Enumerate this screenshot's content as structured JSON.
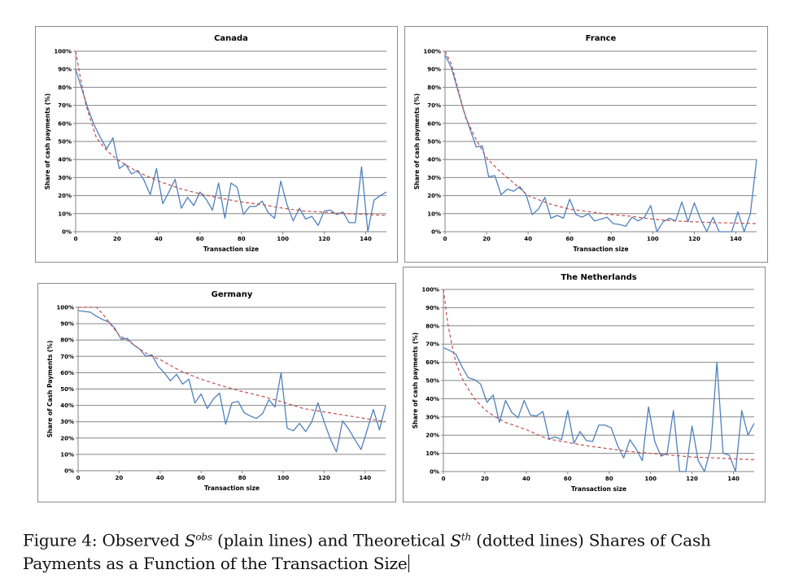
{
  "figure": {
    "caption_prefix": "Figure 4:",
    "caption_part1": " Observed ",
    "caption_sym1": "S",
    "caption_sup1": "obs",
    "caption_part2": " (plain lines) and Theoretical ",
    "caption_sym2": "S",
    "caption_sup2": "th",
    "caption_part3": " (dotted lines) Shares of Cash Payments as a Function of the Transaction Size"
  },
  "colors": {
    "observed": "#4f81bd",
    "theoretical": "#c0504d",
    "grid": "#868686"
  },
  "chart_data": [
    {
      "id": "canada",
      "type": "line",
      "title": "Canada",
      "xlabel": "Transaction size",
      "ylabel": "Share of cash payments (%)",
      "xlim": [
        0,
        150
      ],
      "ylim": [
        0,
        100
      ],
      "xticks": [
        "0",
        "20",
        "40",
        "60",
        "80",
        "100",
        "120",
        "140"
      ],
      "yticks": [
        "0%",
        "10%",
        "20%",
        "30%",
        "40%",
        "50%",
        "60%",
        "70%",
        "80%",
        "90%",
        "100%"
      ],
      "grid": true,
      "series": [
        {
          "name": "Observed (plain line)",
          "style": "solid",
          "x": [
            0,
            3,
            6,
            9,
            12,
            15,
            18,
            21,
            24,
            27,
            30,
            33,
            36,
            39,
            42,
            45,
            48,
            51,
            54,
            57,
            60,
            63,
            66,
            69,
            72,
            75,
            78,
            81,
            84,
            87,
            90,
            93,
            96,
            99,
            102,
            105,
            108,
            111,
            114,
            117,
            120,
            123,
            126,
            129,
            132,
            135,
            138,
            141,
            144,
            147,
            150
          ],
          "y": [
            90,
            79,
            68,
            59,
            52,
            46,
            52,
            35,
            37.5,
            32,
            34,
            28.5,
            20.5,
            35,
            15.5,
            22,
            29,
            13,
            19,
            14.5,
            22,
            18,
            12,
            27,
            7.5,
            27,
            24.5,
            9.5,
            14,
            14,
            17,
            10.5,
            7.5,
            28,
            15,
            6,
            13,
            7,
            8.5,
            3.5,
            11.5,
            12,
            9.5,
            11,
            5,
            5,
            36,
            0,
            17.5,
            20,
            22
          ]
        },
        {
          "name": "Theoretical (dotted line)",
          "style": "dashed",
          "x": [
            0,
            2,
            5,
            10,
            15,
            20,
            30,
            40,
            50,
            60,
            70,
            80,
            90,
            100,
            110,
            120,
            130,
            140,
            150
          ],
          "y": [
            100,
            87,
            70,
            52,
            45,
            40,
            33,
            28,
            24,
            21,
            18.5,
            16.5,
            15,
            13,
            11.5,
            10.8,
            10,
            9.6,
            9
          ]
        }
      ]
    },
    {
      "id": "france",
      "type": "line",
      "title": "France",
      "xlabel": "Transaction size",
      "ylabel": "Share of cash payments (%)",
      "xlim": [
        0,
        150
      ],
      "ylim": [
        0,
        100
      ],
      "xticks": [
        "0",
        "20",
        "40",
        "60",
        "80",
        "100",
        "120",
        "140"
      ],
      "yticks": [
        "0%",
        "10%",
        "20%",
        "30%",
        "40%",
        "50%",
        "60%",
        "70%",
        "80%",
        "90%",
        "100%"
      ],
      "grid": true,
      "series": [
        {
          "name": "Observed (plain line)",
          "style": "solid",
          "x": [
            0,
            3,
            6,
            9,
            12,
            15,
            18,
            21,
            24,
            27,
            30,
            33,
            36,
            39,
            42,
            45,
            48,
            51,
            54,
            57,
            60,
            63,
            66,
            69,
            72,
            75,
            78,
            81,
            84,
            87,
            90,
            93,
            96,
            99,
            102,
            105,
            108,
            111,
            114,
            117,
            120,
            123,
            126,
            129,
            132,
            135,
            138,
            141,
            144,
            147,
            150
          ],
          "y": [
            98,
            91,
            79,
            67,
            57,
            47,
            47.5,
            30.5,
            31,
            20.5,
            23.5,
            22.5,
            25,
            20.5,
            9.5,
            12.5,
            19,
            7.5,
            9,
            7.5,
            18,
            9.5,
            8,
            10,
            6,
            7,
            8,
            4.5,
            4,
            3,
            8,
            6,
            8,
            14.5,
            0,
            5.5,
            7.5,
            6,
            16.5,
            5.5,
            16,
            7,
            0,
            8,
            0,
            0,
            0,
            11,
            0,
            10,
            40
          ]
        },
        {
          "name": "Theoretical (dotted line)",
          "style": "dashed",
          "x": [
            0,
            3,
            6,
            10,
            15,
            20,
            25,
            30,
            35,
            40,
            50,
            60,
            70,
            80,
            90,
            100,
            110,
            120,
            130,
            140,
            150
          ],
          "y": [
            100,
            93,
            80,
            63,
            51,
            41,
            35,
            30,
            25,
            20,
            15.5,
            12.5,
            11,
            9.5,
            8.5,
            7,
            6,
            5.5,
            5,
            4.8,
            4.5
          ]
        }
      ]
    },
    {
      "id": "germany",
      "type": "line",
      "title": "Germany",
      "xlabel": "Transaction size",
      "ylabel": "Share of Cash Payments (%)",
      "xlim": [
        0,
        150
      ],
      "ylim": [
        0,
        100
      ],
      "xticks": [
        "0",
        "20",
        "40",
        "60",
        "80",
        "100",
        "120",
        "140"
      ],
      "yticks": [
        "0%",
        "10%",
        "20%",
        "30%",
        "40%",
        "50%",
        "60%",
        "70%",
        "80%",
        "90%",
        "100%"
      ],
      "grid": true,
      "series": [
        {
          "name": "Observed (plain line)",
          "style": "solid",
          "x": [
            0,
            3,
            6,
            9,
            12,
            15,
            18,
            21,
            24,
            27,
            30,
            33,
            36,
            39,
            42,
            45,
            48,
            51,
            54,
            57,
            60,
            63,
            66,
            69,
            72,
            75,
            78,
            81,
            84,
            87,
            90,
            93,
            96,
            99,
            102,
            105,
            108,
            111,
            114,
            117,
            120,
            123,
            126,
            129,
            132,
            135,
            138,
            141,
            144,
            147,
            150
          ],
          "y": [
            98,
            97.5,
            97,
            94.5,
            92.5,
            91,
            87,
            80.5,
            81,
            77,
            74.5,
            70,
            71,
            64,
            60,
            55,
            59,
            53,
            56,
            41.5,
            47,
            38,
            44,
            47.5,
            28.5,
            41.5,
            42.5,
            35.5,
            33.5,
            32,
            35,
            43.5,
            39,
            60,
            26,
            24.5,
            29,
            24,
            30,
            41.5,
            30,
            19.5,
            11.5,
            30.5,
            25.5,
            19,
            13,
            25,
            37.5,
            25,
            40
          ]
        },
        {
          "name": "Theoretical (dotted line)",
          "style": "dashed",
          "x": [
            0,
            5,
            9,
            12,
            15,
            20,
            25,
            30,
            35,
            40,
            50,
            60,
            70,
            80,
            90,
            100,
            110,
            120,
            130,
            140,
            150
          ],
          "y": [
            100,
            100,
            100,
            96,
            91,
            83,
            79,
            74.5,
            70.5,
            68,
            61,
            56,
            52,
            48.5,
            45.5,
            42,
            38,
            36,
            34,
            32,
            30
          ]
        }
      ]
    },
    {
      "id": "netherlands",
      "type": "line",
      "title": "The Netherlands",
      "xlabel": "Transaction size",
      "ylabel": "Share of cash payments (%)",
      "xlim": [
        0,
        150
      ],
      "ylim": [
        0,
        100
      ],
      "xticks": [
        "0",
        "20",
        "40",
        "60",
        "80",
        "100",
        "120",
        "140"
      ],
      "yticks": [
        "0%",
        "10%",
        "20%",
        "30%",
        "40%",
        "50%",
        "60%",
        "70%",
        "80%",
        "90%",
        "100%"
      ],
      "grid": true,
      "series": [
        {
          "name": "Observed (plain line)",
          "style": "solid",
          "x": [
            0,
            3,
            6,
            9,
            12,
            15,
            18,
            21,
            24,
            27,
            30,
            33,
            36,
            39,
            42,
            45,
            48,
            51,
            54,
            57,
            60,
            63,
            66,
            69,
            72,
            75,
            78,
            81,
            84,
            87,
            90,
            93,
            96,
            99,
            102,
            105,
            108,
            111,
            114,
            117,
            120,
            123,
            126,
            129,
            132,
            135,
            138,
            141,
            144,
            147,
            150
          ],
          "y": [
            68,
            66.5,
            64.5,
            57.5,
            51.5,
            50.5,
            48,
            38,
            42,
            27,
            39,
            32.5,
            29.5,
            39,
            31,
            30.5,
            33,
            18,
            19,
            17.5,
            33.5,
            15.5,
            22,
            17,
            16.5,
            25.5,
            25.5,
            24,
            14.5,
            7.5,
            17.5,
            12.5,
            6,
            35.5,
            16.5,
            8.5,
            10,
            33.5,
            0,
            0,
            25,
            6,
            0,
            12.5,
            60,
            10,
            9,
            0,
            33.5,
            20,
            26.5
          ]
        },
        {
          "name": "Theoretical (dotted line)",
          "style": "dashed",
          "x": [
            0,
            2,
            4,
            6,
            8,
            10,
            15,
            20,
            25,
            30,
            40,
            50,
            60,
            70,
            80,
            90,
            100,
            110,
            120,
            130,
            140,
            150
          ],
          "y": [
            100,
            82,
            70,
            60,
            54,
            49,
            40,
            34,
            30,
            27,
            23,
            18,
            16,
            14,
            12.5,
            11,
            10,
            9,
            8,
            7.5,
            7,
            6.5
          ]
        }
      ]
    }
  ]
}
